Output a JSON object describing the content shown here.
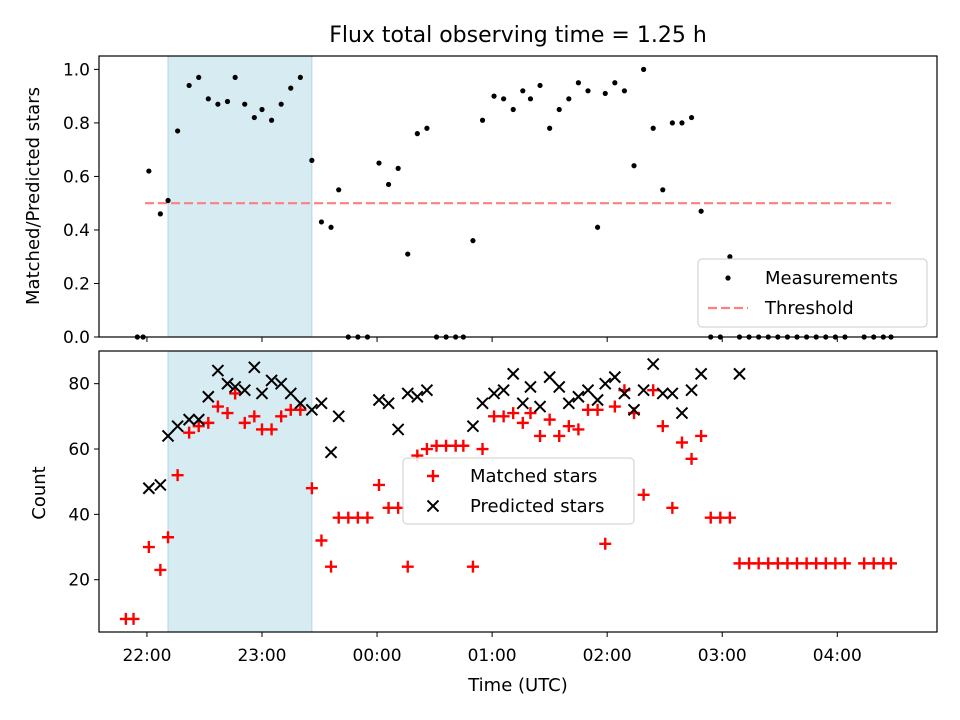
{
  "figure_title": "Flux total observing time = 1.25 h",
  "chart_data": [
    {
      "type": "scatter",
      "title": "Flux total observing time = 1.25 h",
      "xlabel": "",
      "ylabel": "Matched/Predicted stars",
      "xlim": [
        "21:35",
        "04:52"
      ],
      "ylim": [
        0.0,
        1.05
      ],
      "yticks": [
        "0.0",
        "0.2",
        "0.4",
        "0.6",
        "0.8",
        "1.0"
      ],
      "xticks": [
        "22:00",
        "23:00",
        "00:00",
        "01:00",
        "02:00",
        "03:00",
        "04:00"
      ],
      "shaded_interval": [
        "22:11",
        "23:26"
      ],
      "legend": {
        "placement": "lower right",
        "entries": [
          "Measurements",
          "Threshold"
        ]
      },
      "threshold": {
        "name": "Threshold",
        "value": 0.5,
        "x_start": "21:59",
        "x_end": "04:28",
        "color": "#ff7f7f",
        "style": "dashed"
      },
      "series": [
        {
          "name": "Measurements",
          "color": "#000000",
          "marker": "dot",
          "x": [
            "21:55",
            "21:58",
            "22:01",
            "22:07",
            "22:11",
            "22:16",
            "22:22",
            "22:27",
            "22:32",
            "22:37",
            "22:42",
            "22:46",
            "22:51",
            "22:56",
            "23:00",
            "23:05",
            "23:10",
            "23:15",
            "23:20",
            "23:26",
            "23:31",
            "23:36",
            "23:40",
            "23:45",
            "23:50",
            "23:55",
            "00:01",
            "00:06",
            "00:11",
            "00:16",
            "00:21",
            "00:26",
            "00:31",
            "00:36",
            "00:41",
            "00:45",
            "00:50",
            "00:55",
            "01:01",
            "01:06",
            "01:11",
            "01:16",
            "01:20",
            "01:25",
            "01:30",
            "01:35",
            "01:40",
            "01:45",
            "01:50",
            "01:55",
            "01:59",
            "02:04",
            "02:09",
            "02:14",
            "02:19",
            "02:24",
            "02:29",
            "02:34",
            "02:39",
            "02:44",
            "02:49",
            "02:54",
            "02:59",
            "03:04",
            "03:09",
            "03:14",
            "03:19",
            "03:24",
            "03:29",
            "03:34",
            "03:39",
            "03:44",
            "03:49",
            "03:54",
            "03:59",
            "04:04",
            "04:14",
            "04:19",
            "04:24",
            "04:28"
          ],
          "y": [
            0.0,
            0.0,
            0.62,
            0.46,
            0.51,
            0.77,
            0.94,
            0.97,
            0.89,
            0.87,
            0.88,
            0.97,
            0.87,
            0.82,
            0.85,
            0.81,
            0.87,
            0.93,
            0.97,
            0.66,
            0.43,
            0.41,
            0.55,
            0.0,
            0.0,
            0.0,
            0.65,
            0.57,
            0.63,
            0.31,
            0.76,
            0.78,
            0.0,
            0.0,
            0.0,
            0.0,
            0.36,
            0.81,
            0.9,
            0.89,
            0.85,
            0.92,
            0.89,
            0.94,
            0.78,
            0.85,
            0.89,
            0.95,
            0.92,
            0.41,
            0.91,
            0.95,
            0.92,
            0.64,
            1.0,
            0.78,
            0.55,
            0.8,
            0.8,
            0.82,
            0.47,
            0.0,
            0.0,
            0.3,
            0.0,
            0.0,
            0.0,
            0.0,
            0.0,
            0.0,
            0.0,
            0.0,
            0.0,
            0.0,
            0.0,
            0.0,
            0.0,
            0.0,
            0.0,
            0.0
          ]
        }
      ]
    },
    {
      "type": "scatter",
      "title": "",
      "xlabel": "Time (UTC)",
      "ylabel": "Count",
      "xlim": [
        "21:35",
        "04:52"
      ],
      "ylim": [
        4,
        90
      ],
      "yticks": [
        "20",
        "40",
        "60",
        "80"
      ],
      "xticks": [
        "22:00",
        "23:00",
        "00:00",
        "01:00",
        "02:00",
        "03:00",
        "04:00"
      ],
      "shaded_interval": [
        "22:11",
        "23:26"
      ],
      "legend": {
        "placement": "center",
        "entries": [
          "Matched stars",
          "Predicted stars"
        ]
      },
      "series": [
        {
          "name": "Matched stars",
          "color": "#ff0000",
          "marker": "plus",
          "x": [
            "21:49",
            "21:53",
            "22:01",
            "22:07",
            "22:11",
            "22:16",
            "22:22",
            "22:27",
            "22:32",
            "22:37",
            "22:42",
            "22:46",
            "22:51",
            "22:56",
            "23:00",
            "23:05",
            "23:10",
            "23:15",
            "23:20",
            "23:26",
            "23:31",
            "23:36",
            "23:40",
            "23:45",
            "23:50",
            "23:55",
            "00:01",
            "00:06",
            "00:11",
            "00:16",
            "00:21",
            "00:26",
            "00:31",
            "00:36",
            "00:41",
            "00:45",
            "00:50",
            "00:55",
            "01:01",
            "01:06",
            "01:11",
            "01:16",
            "01:20",
            "01:25",
            "01:30",
            "01:35",
            "01:40",
            "01:45",
            "01:50",
            "01:55",
            "01:59",
            "02:04",
            "02:09",
            "02:14",
            "02:19",
            "02:24",
            "02:29",
            "02:34",
            "02:39",
            "02:44",
            "02:49",
            "02:54",
            "02:59",
            "03:04",
            "03:09",
            "03:14",
            "03:19",
            "03:24",
            "03:29",
            "03:34",
            "03:39",
            "03:44",
            "03:49",
            "03:54",
            "03:59",
            "04:04",
            "04:14",
            "04:19",
            "04:24",
            "04:28"
          ],
          "y": [
            8,
            8,
            30,
            23,
            33,
            52,
            65,
            67,
            68,
            73,
            71,
            77,
            68,
            70,
            66,
            66,
            70,
            72,
            72,
            48,
            32,
            24,
            39,
            39,
            39,
            39,
            49,
            42,
            42,
            24,
            58,
            60,
            61,
            61,
            61,
            61,
            24,
            60,
            70,
            70,
            71,
            68,
            71,
            64,
            69,
            64,
            67,
            66,
            72,
            72,
            31,
            73,
            78,
            71,
            46,
            78,
            67,
            42,
            62,
            57,
            64,
            39,
            39,
            39,
            25,
            25,
            25,
            25,
            25,
            25,
            25,
            25,
            25,
            25,
            25,
            25,
            25,
            25,
            25,
            25
          ]
        },
        {
          "name": "Predicted stars",
          "color": "#000000",
          "marker": "x",
          "x": [
            "22:01",
            "22:07",
            "22:11",
            "22:16",
            "22:22",
            "22:27",
            "22:32",
            "22:37",
            "22:42",
            "22:46",
            "22:51",
            "22:56",
            "23:00",
            "23:05",
            "23:10",
            "23:15",
            "23:20",
            "23:26",
            "23:31",
            "23:36",
            "23:40",
            "00:01",
            "00:06",
            "00:11",
            "00:16",
            "00:21",
            "00:26",
            "00:50",
            "00:55",
            "01:01",
            "01:06",
            "01:11",
            "01:16",
            "01:20",
            "01:25",
            "01:30",
            "01:35",
            "01:40",
            "01:45",
            "01:50",
            "01:55",
            "01:59",
            "02:04",
            "02:09",
            "02:14",
            "02:19",
            "02:24",
            "02:29",
            "02:34",
            "02:39",
            "02:44",
            "02:49",
            "03:09"
          ],
          "y": [
            48,
            49,
            64,
            67,
            69,
            69,
            76,
            84,
            80,
            79,
            78,
            85,
            77,
            81,
            80,
            77,
            74,
            72,
            74,
            59,
            70,
            75,
            74,
            66,
            77,
            76,
            78,
            67,
            74,
            77,
            78,
            83,
            74,
            79,
            73,
            82,
            79,
            74,
            76,
            78,
            75,
            80,
            82,
            77,
            72,
            78,
            86,
            77,
            77,
            71,
            78,
            83,
            83
          ]
        }
      ]
    }
  ]
}
